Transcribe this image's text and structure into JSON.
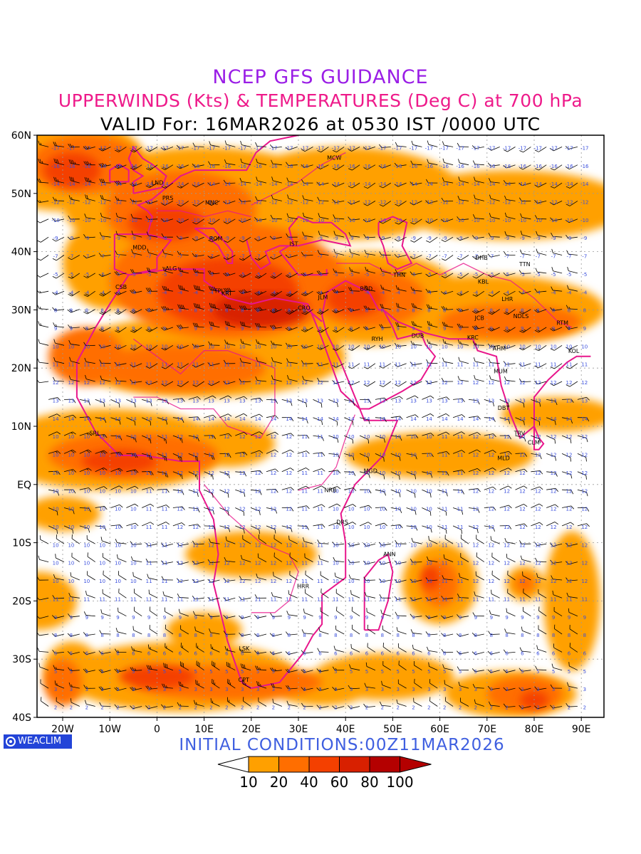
{
  "header": {
    "title": "NCEP GFS GUIDANCE",
    "subtitle": "UPPERWINDS (Kts) & TEMPERATURES (Deg C) at 700 hPa",
    "valid": "VALID For: 16MAR2026 at 0530 IST /0000 UTC"
  },
  "footer": {
    "initial_conditions": "INITIAL CONDITIONS:00Z11MAR2026",
    "brand": "WEACLIM"
  },
  "colors": {
    "band_10_20": "#ffa000",
    "band_20_40": "#ff6e00",
    "band_40_60": "#f44000",
    "band_60_80": "#d82000",
    "band_80_100": "#b40000",
    "coastline": "#e8168c",
    "barb": "#000000",
    "temperature": "#3a4fdd",
    "grid": "#999999"
  },
  "map": {
    "lat_labels": [
      "60N",
      "50N",
      "40N",
      "30N",
      "20N",
      "10N",
      "EQ",
      "10S",
      "20S",
      "30S",
      "40S"
    ],
    "lon_labels": [
      "20W",
      "10W",
      "0",
      "10E",
      "20E",
      "30E",
      "40E",
      "50E",
      "60E",
      "70E",
      "80E",
      "90E"
    ],
    "stations": [
      {
        "code": "MCW",
        "lon": 37.6,
        "lat": 55.8
      },
      {
        "code": "LND",
        "lon": 0.1,
        "lat": 51.5
      },
      {
        "code": "PRS",
        "lon": 2.3,
        "lat": 48.9
      },
      {
        "code": "MNC",
        "lon": 11.6,
        "lat": 48.1
      },
      {
        "code": "ROM",
        "lon": 12.5,
        "lat": 41.9
      },
      {
        "code": "MDD",
        "lon": -3.7,
        "lat": 40.4
      },
      {
        "code": "IST",
        "lon": 29.0,
        "lat": 41.0
      },
      {
        "code": "DHB",
        "lon": 68.8,
        "lat": 38.6
      },
      {
        "code": "TTN",
        "lon": 78.0,
        "lat": 37.5
      },
      {
        "code": "ALG",
        "lon": 3.0,
        "lat": 36.8
      },
      {
        "code": "THN",
        "lon": 51.4,
        "lat": 35.7
      },
      {
        "code": "CSB",
        "lon": -7.6,
        "lat": 33.6
      },
      {
        "code": "KBL",
        "lon": 69.2,
        "lat": 34.5
      },
      {
        "code": "TPL",
        "lon": 13.2,
        "lat": 32.9
      },
      {
        "code": "KRT",
        "lon": 14.8,
        "lat": 32.5
      },
      {
        "code": "LHR",
        "lon": 74.3,
        "lat": 31.5
      },
      {
        "code": "BGD",
        "lon": 44.4,
        "lat": 33.3
      },
      {
        "code": "JLM",
        "lon": 35.2,
        "lat": 31.8
      },
      {
        "code": "CRO",
        "lon": 31.2,
        "lat": 30.0
      },
      {
        "code": "NDLS",
        "lon": 77.2,
        "lat": 28.6
      },
      {
        "code": "JCB",
        "lon": 68.4,
        "lat": 28.3
      },
      {
        "code": "RTM",
        "lon": 86.0,
        "lat": 27.4
      },
      {
        "code": "RYH",
        "lon": 46.7,
        "lat": 24.7
      },
      {
        "code": "DUB",
        "lon": 55.3,
        "lat": 25.2
      },
      {
        "code": "KRC",
        "lon": 67.0,
        "lat": 24.9
      },
      {
        "code": "AHM",
        "lon": 72.6,
        "lat": 23.0
      },
      {
        "code": "KOL",
        "lon": 88.4,
        "lat": 22.6
      },
      {
        "code": "MUM",
        "lon": 72.9,
        "lat": 19.1
      },
      {
        "code": "DBT",
        "lon": 73.5,
        "lat": 12.8
      },
      {
        "code": "SRL",
        "lon": -13.2,
        "lat": 8.5
      },
      {
        "code": "TRV",
        "lon": 76.9,
        "lat": 8.5
      },
      {
        "code": "CLM",
        "lon": 79.9,
        "lat": 6.9
      },
      {
        "code": "MGD",
        "lon": 45.3,
        "lat": 2.0
      },
      {
        "code": "MLD",
        "lon": 73.5,
        "lat": 4.2
      },
      {
        "code": "NRB",
        "lon": 36.8,
        "lat": -1.3
      },
      {
        "code": "DRS",
        "lon": 39.3,
        "lat": -6.8
      },
      {
        "code": "ANN",
        "lon": 49.3,
        "lat": -12.3
      },
      {
        "code": "HRR",
        "lon": 31.0,
        "lat": -17.8
      },
      {
        "code": "LSK",
        "lon": 18.5,
        "lat": -28.5
      },
      {
        "code": "CPT",
        "lon": 18.4,
        "lat": -33.9
      }
    ]
  },
  "legend": {
    "labels": [
      "10",
      "20",
      "40",
      "60",
      "80",
      "100"
    ],
    "colors": [
      "#ffffff",
      "#ffa000",
      "#ff6e00",
      "#f44000",
      "#d82000",
      "#b40000",
      "#b40000"
    ]
  }
}
